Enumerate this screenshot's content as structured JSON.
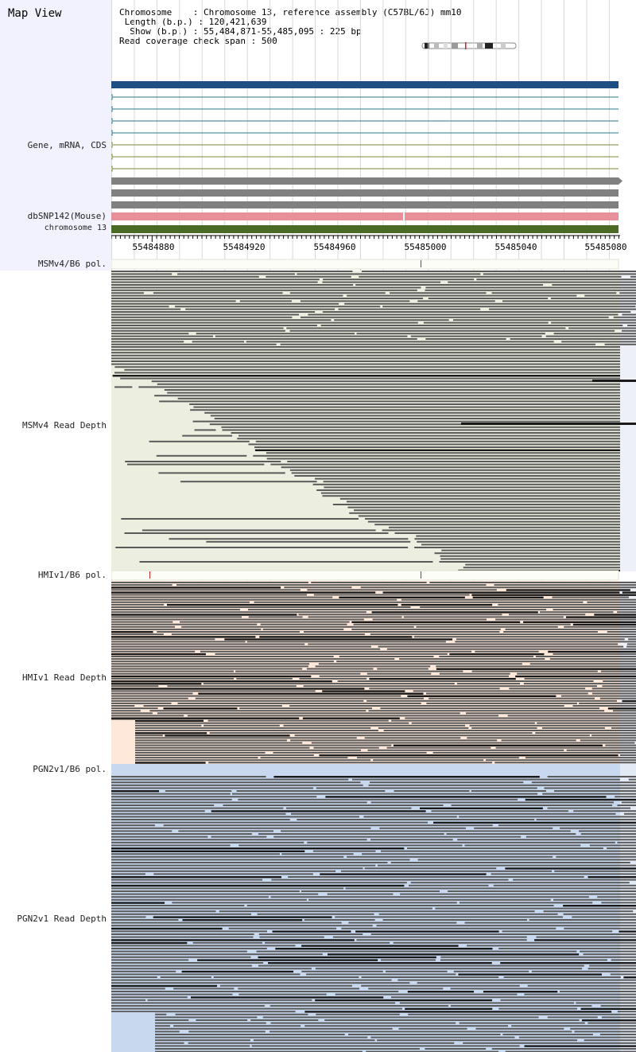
{
  "app": {
    "title": "Map View"
  },
  "info": {
    "chromosome_key": "Chromosome",
    "chromosome_value": "Chromosome 13, reference assembly (C57BL/6J) mm10",
    "length_key": "Length (b.p.)",
    "length_value": "120,421,639",
    "show_key": "Show (b.p.)",
    "show_value": "55,484,871-55,485,095 : 225 bp",
    "span_key": "Read coverage check span",
    "span_value": "500"
  },
  "tracks": {
    "gene": "Gene, mRNA, CDS",
    "dbsnp": "dbSNP142(Mouse)",
    "chromosome": "chromosome 13",
    "msm_pol": "MSMv4/B6 pol.",
    "msm_depth": "MSMv4 Read Depth",
    "hmi_pol": "HMIv1/B6 pol.",
    "hmi_depth": "HMIv1 Read Depth",
    "pgn_pol": "PGN2v1/B6 pol.",
    "pgn_depth": "PGN2v1 Read Depth"
  },
  "ruler": {
    "labels": [
      "55484880",
      "55484920",
      "55484960",
      "55485000",
      "55485040",
      "55485080"
    ]
  },
  "colors": {
    "gene_bar": "#1f4e82",
    "gene_line": "#2a7a8a",
    "cds_line": "#7a8a3a",
    "gray_bar": "#808080",
    "snp": "#e8909a",
    "chrom": "#4b6a26",
    "msm_bg": "#ecefe0",
    "hmi_bg": "#fde8da",
    "pgn_bg": "#c7d8ef",
    "read": "#5a5a5a",
    "read_dark": "#1a1a1a",
    "marker": "#cc2222"
  }
}
